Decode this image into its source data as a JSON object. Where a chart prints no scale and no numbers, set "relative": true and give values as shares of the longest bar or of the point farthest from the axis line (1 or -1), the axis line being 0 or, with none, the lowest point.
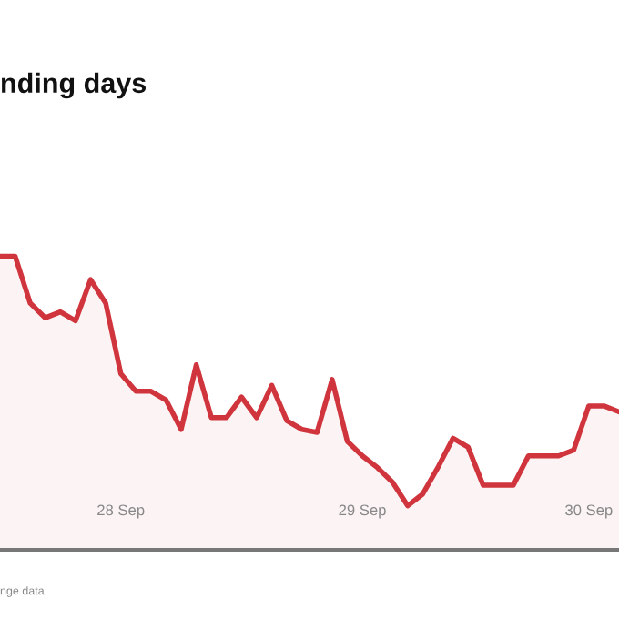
{
  "chart_data": {
    "type": "area",
    "title": "nding days",
    "annotations": [
      "nge data"
    ],
    "relative": true,
    "categories": [
      null,
      null,
      null,
      null,
      null,
      null,
      null,
      null,
      "28 Sep",
      null,
      null,
      null,
      null,
      null,
      null,
      null,
      null,
      null,
      null,
      null,
      null,
      null,
      null,
      null,
      "29 Sep",
      null,
      null,
      null,
      null,
      null,
      null,
      null,
      null,
      null,
      null,
      null,
      null,
      null,
      null,
      "30 Sep",
      null,
      null
    ],
    "series": [
      {
        "color": "#d0343c",
        "values": [
          1.0,
          1.0,
          0.84,
          0.79,
          0.81,
          0.78,
          0.92,
          0.84,
          0.6,
          0.54,
          0.54,
          0.51,
          0.41,
          0.63,
          0.45,
          0.45,
          0.52,
          0.45,
          0.56,
          0.44,
          0.41,
          0.4,
          0.58,
          0.37,
          0.32,
          0.28,
          0.23,
          0.15,
          0.19,
          0.28,
          0.38,
          0.35,
          0.22,
          0.22,
          0.22,
          0.32,
          0.32,
          0.32,
          0.34,
          0.49,
          0.49,
          0.47
        ]
      }
    ],
    "grid": false,
    "legend": false
  }
}
